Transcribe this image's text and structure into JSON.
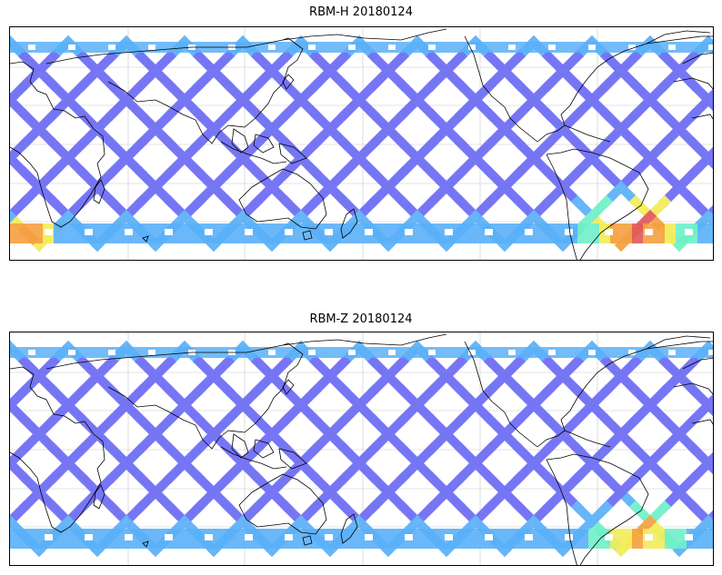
{
  "panels": [
    {
      "title": "RBM-H 20180124",
      "hot_zones": [
        "south-atlantic",
        "south-indian-west"
      ]
    },
    {
      "title": "RBM-Z 20180124",
      "hot_zones": [
        "south-atlantic"
      ]
    }
  ],
  "colors": {
    "low": "#6b6bf5",
    "mid_low": "#5ab0f8",
    "mid": "#6ff0c8",
    "mid_high": "#f2ec5a",
    "high": "#f5a040",
    "peak": "#e0585a",
    "coast": "#000000",
    "grid": "#c8c8c8"
  },
  "map": {
    "projection": "equirectangular",
    "gridlines": true,
    "coastlines": true
  }
}
